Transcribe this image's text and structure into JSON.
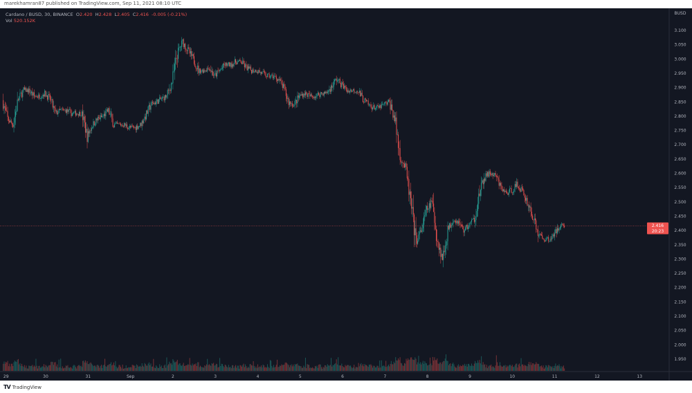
{
  "publisher_line": "marekhamran87 published on TradingView.com, Sep 11, 2021 08:10 UTC",
  "legend": {
    "symbol": "Cardano / BUSD, 30, BINANCE",
    "open_label": "O",
    "open": "2.420",
    "high_label": "H",
    "high": "2.428",
    "low_label": "L",
    "low": "2.405",
    "close_label": "C",
    "close": "2.416",
    "change": "-0.005 (-0.21%)",
    "vol_label": "Vol",
    "vol": "520.152K"
  },
  "colors": {
    "background": "#131722",
    "up": "#26a69a",
    "down": "#ef5350",
    "last_price": "#ef5350"
  },
  "price_axis": {
    "currency": "BUSD",
    "last_price": "2.416",
    "countdown": "20:23"
  },
  "logo_text": "TradingView",
  "chart_data": {
    "type": "candlestick",
    "title": "Cardano / BUSD, 30, BINANCE",
    "ylim": [
      1.925,
      3.125
    ],
    "y_ticks": [
      "3.100",
      "3.050",
      "3.000",
      "2.950",
      "2.900",
      "2.850",
      "2.800",
      "2.750",
      "2.700",
      "2.650",
      "2.600",
      "2.550",
      "2.500",
      "2.450",
      "2.400",
      "2.350",
      "2.300",
      "2.250",
      "2.200",
      "2.150",
      "2.100",
      "2.050",
      "2.000",
      "1.950"
    ],
    "x_ticks": [
      "29",
      "30",
      "31",
      "Sep",
      "2",
      "3",
      "4",
      "5",
      "6",
      "7",
      "8",
      "9",
      "10",
      "11",
      "12",
      "13"
    ],
    "approx_close_start": "2021-08-29 00:00",
    "approx_close_interval": "3h",
    "approx_closes": [
      2.856,
      2.79,
      2.77,
      2.86,
      2.89,
      2.89,
      2.87,
      2.87,
      2.88,
      2.86,
      2.81,
      2.82,
      2.82,
      2.81,
      2.81,
      2.81,
      2.73,
      2.77,
      2.79,
      2.8,
      2.82,
      2.77,
      2.77,
      2.77,
      2.76,
      2.76,
      2.77,
      2.8,
      2.84,
      2.85,
      2.86,
      2.87,
      2.92,
      3.02,
      3.06,
      3.03,
      3.0,
      2.96,
      2.96,
      2.97,
      2.94,
      2.96,
      2.98,
      2.98,
      2.99,
      2.99,
      2.97,
      2.96,
      2.96,
      2.95,
      2.94,
      2.94,
      2.93,
      2.9,
      2.85,
      2.84,
      2.87,
      2.88,
      2.87,
      2.87,
      2.88,
      2.88,
      2.9,
      2.93,
      2.91,
      2.89,
      2.89,
      2.89,
      2.86,
      2.84,
      2.83,
      2.83,
      2.84,
      2.85,
      2.79,
      2.66,
      2.62,
      2.5,
      2.36,
      2.4,
      2.47,
      2.5,
      2.37,
      2.3,
      2.4,
      2.44,
      2.43,
      2.4,
      2.42,
      2.44,
      2.53,
      2.59,
      2.6,
      2.59,
      2.55,
      2.53,
      2.54,
      2.56,
      2.54,
      2.5,
      2.45,
      2.39,
      2.37,
      2.37,
      2.38,
      2.42,
      2.416
    ],
    "last_price": 2.416
  }
}
